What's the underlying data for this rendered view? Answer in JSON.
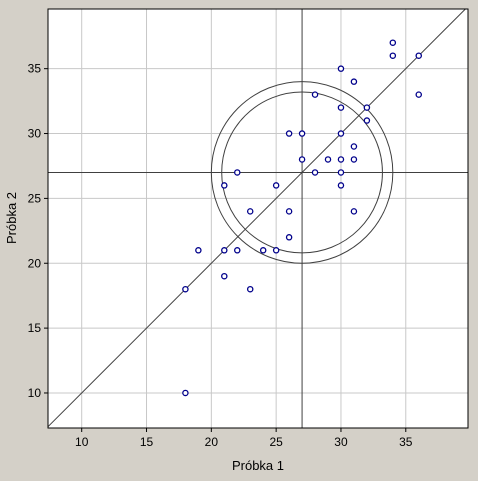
{
  "chart_data": {
    "type": "scatter",
    "title": "",
    "xlabel": "Próbka 1",
    "ylabel": "Próbka 2",
    "xlim": [
      7.4,
      39.8
    ],
    "ylim": [
      7.3,
      39.6
    ],
    "xticks": [
      10,
      15,
      20,
      25,
      30,
      35
    ],
    "yticks": [
      10,
      15,
      20,
      25,
      30,
      35
    ],
    "grid": true,
    "series": [
      {
        "color": "#00008b",
        "marker": "open-circle",
        "points": [
          {
            "x": 18,
            "y": 10
          },
          {
            "x": 18,
            "y": 18
          },
          {
            "x": 19,
            "y": 21
          },
          {
            "x": 21,
            "y": 19
          },
          {
            "x": 21,
            "y": 21
          },
          {
            "x": 21,
            "y": 26
          },
          {
            "x": 22,
            "y": 21
          },
          {
            "x": 22,
            "y": 27
          },
          {
            "x": 23,
            "y": 18
          },
          {
            "x": 23,
            "y": 24
          },
          {
            "x": 24,
            "y": 21
          },
          {
            "x": 25,
            "y": 21
          },
          {
            "x": 25,
            "y": 26
          },
          {
            "x": 26,
            "y": 22
          },
          {
            "x": 26,
            "y": 24
          },
          {
            "x": 26,
            "y": 30
          },
          {
            "x": 27,
            "y": 28
          },
          {
            "x": 27,
            "y": 30
          },
          {
            "x": 28,
            "y": 27
          },
          {
            "x": 28,
            "y": 33
          },
          {
            "x": 29,
            "y": 28
          },
          {
            "x": 30,
            "y": 26
          },
          {
            "x": 30,
            "y": 27
          },
          {
            "x": 30,
            "y": 28
          },
          {
            "x": 30,
            "y": 30
          },
          {
            "x": 30,
            "y": 32
          },
          {
            "x": 30,
            "y": 35
          },
          {
            "x": 31,
            "y": 24
          },
          {
            "x": 31,
            "y": 28
          },
          {
            "x": 31,
            "y": 29
          },
          {
            "x": 31,
            "y": 34
          },
          {
            "x": 32,
            "y": 31
          },
          {
            "x": 32,
            "y": 32
          },
          {
            "x": 34,
            "y": 36
          },
          {
            "x": 34,
            "y": 37
          },
          {
            "x": 36,
            "y": 33
          },
          {
            "x": 36,
            "y": 36
          }
        ]
      }
    ],
    "reference_lines": {
      "vertical_x": 27,
      "horizontal_y": 27,
      "diagonal": "y = x"
    },
    "ellipses": {
      "center": {
        "x": 27,
        "y": 27
      },
      "radii_data": [
        6.2,
        7.0
      ]
    },
    "colors": {
      "background": "#d4d0c8",
      "plot_area": "#ffffff",
      "grid": "#c8c8c8",
      "lines": "#404040",
      "markers": "#00008b",
      "text": "#000000"
    }
  }
}
